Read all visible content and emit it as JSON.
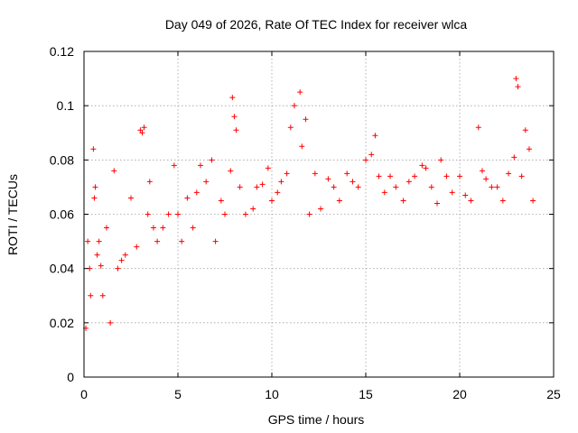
{
  "chart_data": {
    "type": "scatter",
    "title": "Day 049 of 2026, Rate Of TEC Index for receiver wlca",
    "xlabel": "GPS time / hours",
    "ylabel": "ROTI / TECUs",
    "xlim": [
      0,
      25
    ],
    "ylim": [
      0,
      0.12
    ],
    "xticks": [
      0,
      5,
      10,
      15,
      20,
      25
    ],
    "yticks": [
      0,
      0.02,
      0.04,
      0.06,
      0.08,
      0.1,
      0.12
    ],
    "xtick_labels": [
      "0",
      "5",
      "10",
      "15",
      "20",
      "25"
    ],
    "ytick_labels": [
      "0",
      "0.02",
      "0.04",
      "0.06",
      "0.08",
      "0.1",
      "0.12"
    ],
    "grid": true,
    "marker": "plus",
    "color": "#ff0000",
    "series": [
      {
        "x": [
          0.1,
          0.2,
          0.3,
          0.35,
          0.5,
          0.55,
          0.6,
          0.7,
          0.8,
          0.9,
          1.0,
          1.2,
          1.4,
          1.6,
          1.8,
          2.0,
          2.2,
          2.5,
          2.8,
          3.0,
          3.1,
          3.2,
          3.4,
          3.5,
          3.7,
          3.9,
          4.2,
          4.5,
          4.8,
          5.0,
          5.2,
          5.5,
          5.8,
          6.0,
          6.2,
          6.5,
          6.8,
          7.0,
          7.3,
          7.5,
          7.8,
          7.9,
          8.0,
          8.1,
          8.3,
          8.6,
          9.0,
          9.2,
          9.5,
          9.8,
          10.0,
          10.3,
          10.5,
          10.8,
          11.0,
          11.2,
          11.5,
          11.6,
          11.8,
          12.0,
          12.3,
          12.6,
          13.0,
          13.3,
          13.6,
          14.0,
          14.3,
          14.6,
          15.0,
          15.3,
          15.5,
          15.7,
          16.0,
          16.3,
          16.6,
          17.0,
          17.3,
          17.6,
          18.0,
          18.2,
          18.5,
          18.8,
          19.0,
          19.3,
          19.6,
          20.0,
          20.3,
          20.6,
          21.0,
          21.2,
          21.4,
          21.7,
          22.0,
          22.3,
          22.6,
          22.9,
          23.0,
          23.1,
          23.3,
          23.5,
          23.7,
          23.9
        ],
        "y": [
          0.018,
          0.05,
          0.04,
          0.03,
          0.084,
          0.066,
          0.07,
          0.045,
          0.05,
          0.041,
          0.03,
          0.055,
          0.02,
          0.076,
          0.04,
          0.043,
          0.045,
          0.066,
          0.048,
          0.091,
          0.09,
          0.092,
          0.06,
          0.072,
          0.055,
          0.05,
          0.055,
          0.06,
          0.078,
          0.06,
          0.05,
          0.066,
          0.055,
          0.068,
          0.078,
          0.072,
          0.08,
          0.05,
          0.065,
          0.06,
          0.076,
          0.103,
          0.096,
          0.091,
          0.07,
          0.06,
          0.062,
          0.07,
          0.071,
          0.077,
          0.065,
          0.068,
          0.072,
          0.075,
          0.092,
          0.1,
          0.105,
          0.085,
          0.095,
          0.06,
          0.075,
          0.062,
          0.073,
          0.07,
          0.065,
          0.075,
          0.072,
          0.07,
          0.08,
          0.082,
          0.089,
          0.074,
          0.068,
          0.074,
          0.07,
          0.065,
          0.072,
          0.074,
          0.078,
          0.077,
          0.07,
          0.064,
          0.08,
          0.074,
          0.068,
          0.074,
          0.067,
          0.065,
          0.092,
          0.076,
          0.073,
          0.07,
          0.07,
          0.065,
          0.075,
          0.081,
          0.11,
          0.107,
          0.074,
          0.091,
          0.084,
          0.065
        ]
      }
    ]
  }
}
